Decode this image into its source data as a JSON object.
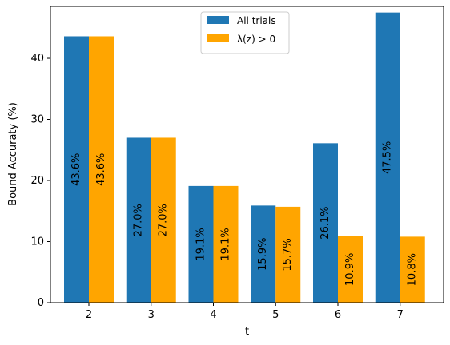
{
  "chart_data": {
    "type": "bar",
    "title": "",
    "xlabel": "t",
    "ylabel": "Bound Accuraty (%)",
    "categories": [
      "2",
      "3",
      "4",
      "5",
      "6",
      "7"
    ],
    "ylim": [
      0,
      48.5
    ],
    "yticks": [
      0,
      10,
      20,
      30,
      40
    ],
    "grid": false,
    "legend_position": "top-center",
    "series": [
      {
        "name": "All trials",
        "color": "#1f77b4",
        "values": [
          43.6,
          27.0,
          19.1,
          15.9,
          26.1,
          47.5
        ],
        "labels": [
          "43.6%",
          "27.0%",
          "19.1%",
          "15.9%",
          "26.1%",
          "47.5%"
        ]
      },
      {
        "name": "λ(z) > 0",
        "color": "#ffa500",
        "values": [
          43.6,
          27.0,
          19.1,
          15.7,
          10.9,
          10.8
        ],
        "labels": [
          "43.6%",
          "27.0%",
          "19.1%",
          "15.7%",
          "10.9%",
          "10.8%"
        ]
      }
    ]
  }
}
